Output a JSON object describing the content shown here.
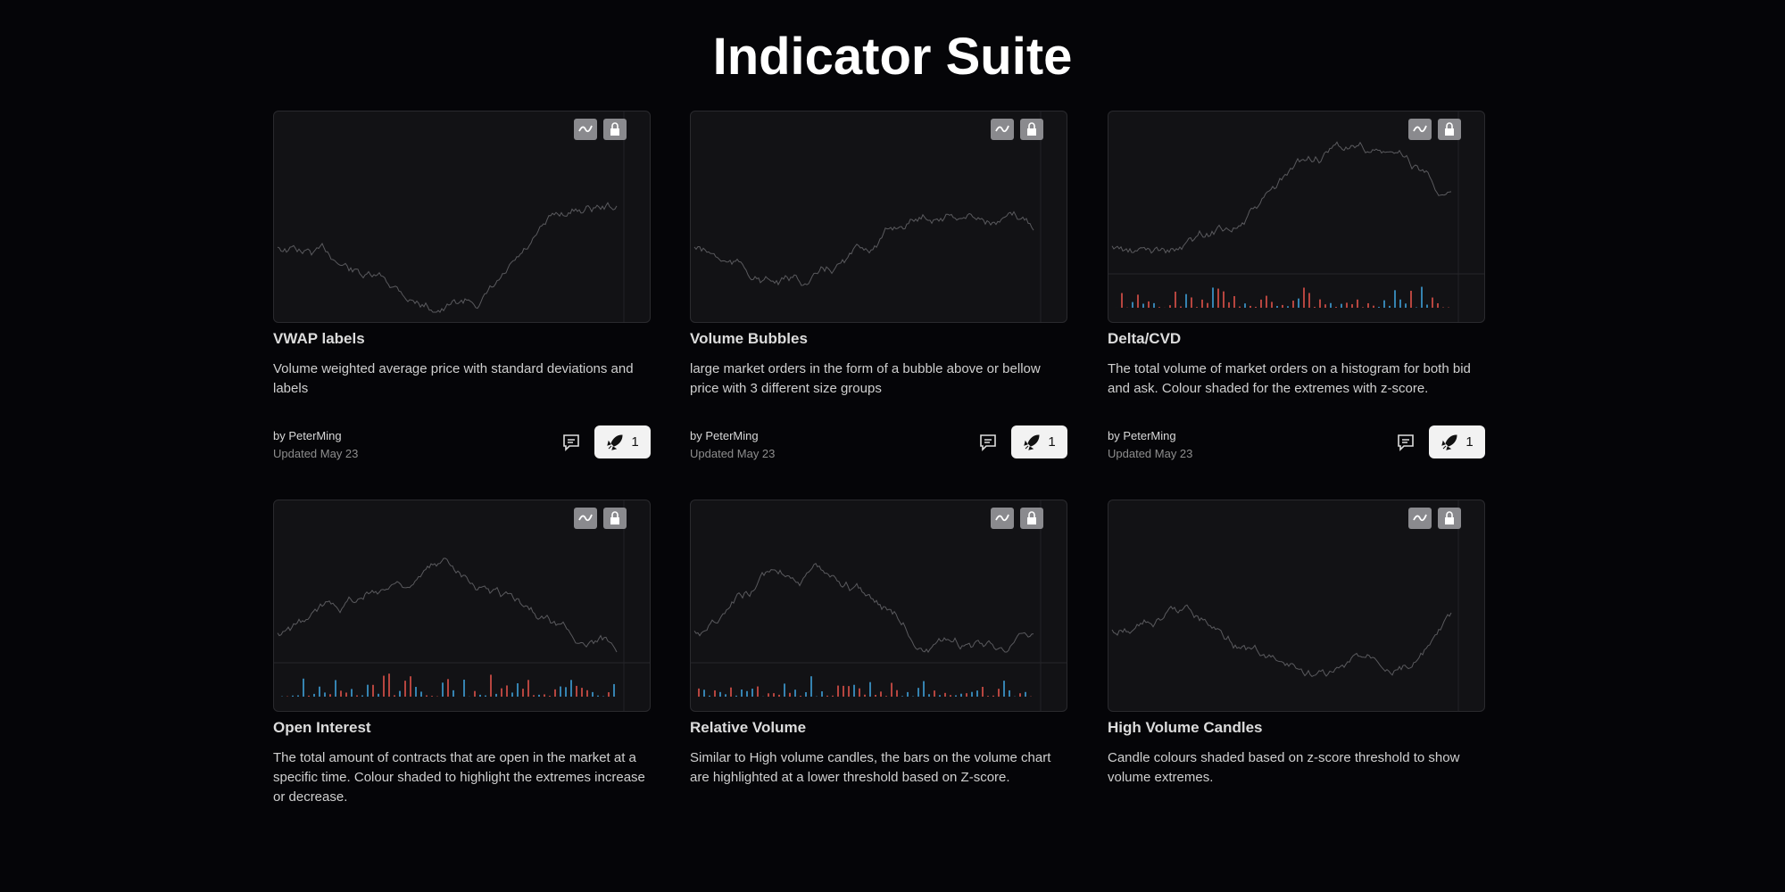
{
  "header": {
    "title": "Indicator Suite"
  },
  "cards": [
    {
      "title": "VWAP labels",
      "description": "Volume weighted average price with standard deviations and labels",
      "author": "by PeterMing",
      "updated": "Updated May 23",
      "boosts": 1
    },
    {
      "title": "Volume Bubbles",
      "description": "large market orders in the form of a bubble above or bellow price with 3 different size groups",
      "author": "by PeterMing",
      "updated": "Updated May 23",
      "boosts": 1
    },
    {
      "title": "Delta/CVD",
      "description": "The total volume of market orders on a histogram for both bid and ask. Colour shaded for the extremes with z-score.",
      "author": "by PeterMing",
      "updated": "Updated May 23",
      "boosts": 1
    },
    {
      "title": "Open Interest",
      "description": "The total amount of contracts that are open in the market at a specific time. Colour shaded to highlight the extremes increase or decrease."
    },
    {
      "title": "Relative Volume",
      "description": "Similar to High volume candles, the bars on the volume chart are highlighted at a lower threshold based on Z-score."
    },
    {
      "title": "High Volume Candles",
      "description": "Candle colours shaded based on z-score threshold to show volume extremes."
    }
  ]
}
